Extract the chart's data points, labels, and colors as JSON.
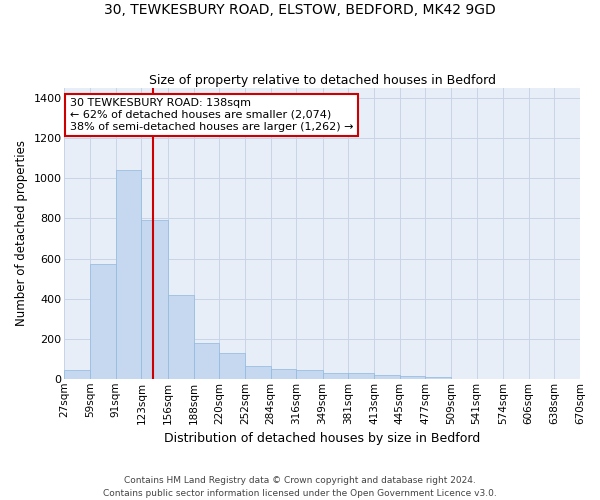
{
  "title1": "30, TEWKESBURY ROAD, ELSTOW, BEDFORD, MK42 9GD",
  "title2": "Size of property relative to detached houses in Bedford",
  "xlabel": "Distribution of detached houses by size in Bedford",
  "ylabel": "Number of detached properties",
  "annotation_line1": "30 TEWKESBURY ROAD: 138sqm",
  "annotation_line2": "← 62% of detached houses are smaller (2,074)",
  "annotation_line3": "38% of semi-detached houses are larger (1,262) →",
  "footer1": "Contains HM Land Registry data © Crown copyright and database right 2024.",
  "footer2": "Contains public sector information licensed under the Open Government Licence v3.0.",
  "property_size": 138,
  "bin_edges": [
    27,
    59,
    91,
    123,
    156,
    188,
    220,
    252,
    284,
    316,
    349,
    381,
    413,
    445,
    477,
    509,
    541,
    574,
    606,
    638,
    670
  ],
  "bar_heights": [
    45,
    575,
    1040,
    790,
    420,
    180,
    130,
    65,
    50,
    45,
    27,
    27,
    20,
    15,
    10,
    0,
    0,
    0,
    0,
    0
  ],
  "bar_color": "#c5d8f0",
  "bar_edge_color": "#8fb8de",
  "red_line_color": "#cc0000",
  "grid_color": "#c8d4e8",
  "background_color": "#e8eef8",
  "annotation_box_facecolor": "#ffffff",
  "annotation_border_color": "#cc0000",
  "ylim": [
    0,
    1450
  ],
  "yticks": [
    0,
    200,
    400,
    600,
    800,
    1000,
    1200,
    1400
  ],
  "x_labels": [
    "27sqm",
    "59sqm",
    "91sqm",
    "123sqm",
    "156sqm",
    "188sqm",
    "220sqm",
    "252sqm",
    "284sqm",
    "316sqm",
    "349sqm",
    "381sqm",
    "413sqm",
    "445sqm",
    "477sqm",
    "509sqm",
    "541sqm",
    "574sqm",
    "606sqm",
    "638sqm",
    "670sqm"
  ]
}
